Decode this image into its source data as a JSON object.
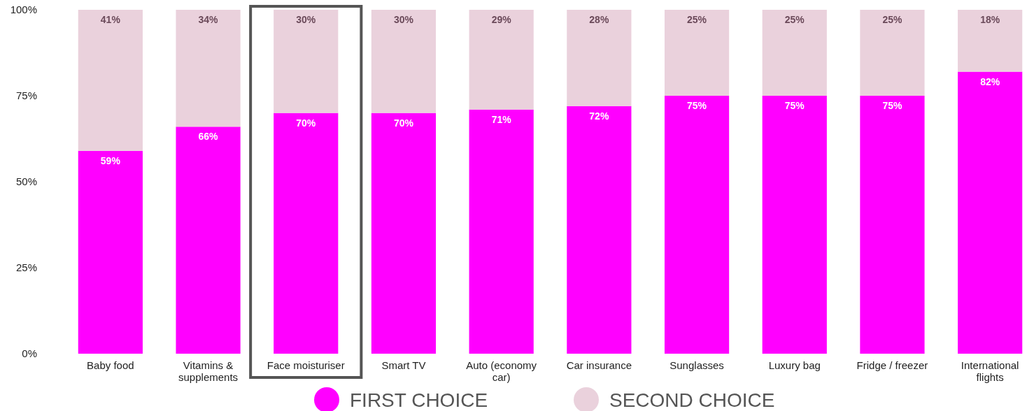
{
  "chart_data": {
    "type": "bar",
    "stacked": true,
    "categories": [
      "Baby food",
      "Vitamins & supplements",
      "Face moisturiser",
      "Smart TV",
      "Auto (economy car)",
      "Car insurance",
      "Sunglasses",
      "Luxury bag",
      "Fridge / freezer",
      "International flights"
    ],
    "series": [
      {
        "name": "FIRST CHOICE",
        "color": "#ff00ff",
        "values": [
          59,
          66,
          70,
          70,
          71,
          72,
          75,
          75,
          75,
          82
        ],
        "value_labels": [
          "59%",
          "66%",
          "70%",
          "70%",
          "71%",
          "72%",
          "75%",
          "75%",
          "75%",
          "82%"
        ]
      },
      {
        "name": "SECOND CHOICE",
        "color": "#ead1dc",
        "values": [
          41,
          34,
          30,
          30,
          29,
          28,
          25,
          25,
          25,
          18
        ],
        "value_labels": [
          "41%",
          "34%",
          "30%",
          "30%",
          "29%",
          "28%",
          "25%",
          "25%",
          "25%",
          "18%"
        ]
      }
    ],
    "ylim": [
      0,
      100
    ],
    "yticks": [
      {
        "value": 0,
        "label": "0%"
      },
      {
        "value": 25,
        "label": "25%"
      },
      {
        "value": 50,
        "label": "50%"
      },
      {
        "value": 75,
        "label": "75%"
      },
      {
        "value": 100,
        "label": "100%"
      }
    ],
    "grid": false,
    "legend": "bottom"
  }
}
